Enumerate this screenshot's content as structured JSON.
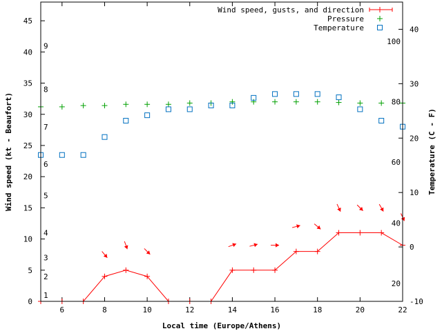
{
  "chart_data": {
    "type": "line",
    "title": "",
    "xlabel": "Local time (Europe/Athens)",
    "ylabel": "Wind speed (kt - Beaufort)",
    "y2label": "Temperature (C - F)",
    "xlim": [
      5,
      22
    ],
    "ylim": [
      0,
      48
    ],
    "y2lim_celsius": [
      -10,
      45
    ],
    "x_ticks": [
      6,
      8,
      10,
      12,
      14,
      16,
      18,
      20,
      22
    ],
    "y_ticks": [
      0,
      5,
      10,
      15,
      20,
      25,
      30,
      35,
      40,
      45
    ],
    "y2_ticks_celsius": [
      -10,
      0,
      10,
      20,
      30,
      40
    ],
    "beaufort_labels": [
      {
        "label": "1",
        "kt": 1
      },
      {
        "label": "2",
        "kt": 4
      },
      {
        "label": "3",
        "kt": 7
      },
      {
        "label": "4",
        "kt": 11
      },
      {
        "label": "5",
        "kt": 17
      },
      {
        "label": "6",
        "kt": 22
      },
      {
        "label": "7",
        "kt": 28
      },
      {
        "label": "8",
        "kt": 34
      },
      {
        "label": "9",
        "kt": 41
      }
    ],
    "fahrenheit_labels": [
      {
        "label": "20",
        "celsius": -6.7
      },
      {
        "label": "40",
        "celsius": 4.4
      },
      {
        "label": "60",
        "celsius": 15.6
      },
      {
        "label": "80",
        "celsius": 26.7
      },
      {
        "label": "100",
        "celsius": 37.8
      }
    ],
    "legend": {
      "position": "top-right",
      "entries": [
        "Wind speed, gusts, and direction",
        "Pressure",
        "Temperature"
      ]
    },
    "series": [
      {
        "name": "Wind speed, gusts, and direction",
        "axis": "y",
        "color": "#ff0000",
        "x": [
          5,
          6,
          7,
          8,
          9,
          10,
          11,
          12,
          13,
          14,
          15,
          16,
          17,
          18,
          19,
          20,
          21,
          22
        ],
        "values": [
          0,
          0,
          0,
          4,
          5,
          4,
          0,
          0,
          0,
          5,
          5,
          5,
          8,
          8,
          11,
          11,
          11,
          9
        ]
      },
      {
        "name": "Pressure",
        "axis": "y",
        "color": "#00a000",
        "x": [
          5,
          6,
          7,
          8,
          9,
          10,
          11,
          12,
          13,
          14,
          15,
          16,
          17,
          18,
          19,
          20,
          21,
          22
        ],
        "values": [
          31.2,
          31.2,
          31.4,
          31.4,
          31.6,
          31.6,
          31.6,
          31.8,
          31.8,
          32.0,
          32.0,
          32.0,
          32.0,
          32.0,
          31.9,
          31.8,
          31.8,
          31.8
        ]
      },
      {
        "name": "Temperature",
        "axis": "y2",
        "color": "#0070c0",
        "unit": "C",
        "x": [
          5,
          6,
          7,
          8,
          9,
          10,
          11,
          12,
          13,
          14,
          15,
          16,
          17,
          18,
          19,
          20,
          21,
          22
        ],
        "values": [
          16.9,
          16.9,
          16.9,
          20.2,
          23.2,
          24.2,
          25.3,
          25.3,
          26.0,
          26.0,
          27.4,
          28.1,
          28.1,
          28.1,
          27.5,
          25.3,
          23.2,
          22.1
        ]
      }
    ],
    "wind_direction_arrows": {
      "x": [
        8,
        9,
        10,
        14,
        15,
        16,
        17,
        18,
        19,
        20,
        21,
        22
      ],
      "y_kt": [
        7.5,
        9,
        8,
        9,
        9,
        9,
        12,
        12,
        15,
        15,
        15,
        13.5
      ],
      "direction_deg": [
        320,
        340,
        315,
        250,
        255,
        270,
        255,
        310,
        335,
        315,
        330,
        335
      ]
    }
  }
}
